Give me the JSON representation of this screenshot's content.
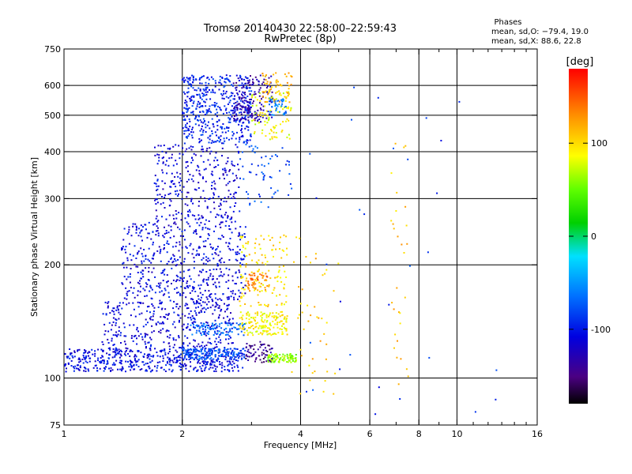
{
  "chart_data": {
    "type": "scatter",
    "title": "Tromsø 20140430 22:58:00–22:59:43",
    "subtitle": "RwPretec (8p)",
    "phase_block": {
      "heading": "Phases",
      "line_o": "mean, sd,O: −79.4, 19.0",
      "line_x": "mean, sd,X: 88.6, 22.8"
    },
    "xlabel": "Frequency [MHz]",
    "ylabel": "Stationary phase Virtual Height [km]",
    "x_scale": "log2",
    "y_scale": "log",
    "xlim": [
      1,
      16
    ],
    "ylim": [
      75,
      750
    ],
    "x_ticks": [
      1,
      2,
      4,
      6,
      8,
      10,
      16
    ],
    "x_tick_labels": [
      "1",
      "2",
      "4",
      "6",
      "8",
      "10",
      "16"
    ],
    "x_minor_ticks": [
      3,
      5,
      7,
      9,
      11,
      12,
      13,
      14,
      15
    ],
    "x_grid": [
      2,
      4,
      6,
      8,
      10
    ],
    "y_ticks": [
      75,
      100,
      200,
      300,
      400,
      500,
      600,
      750
    ],
    "y_tick_labels": [
      "75",
      "100",
      "200",
      "300",
      "400",
      "500",
      "600",
      "750"
    ],
    "y_grid": [
      100,
      200,
      300,
      400,
      500,
      600
    ],
    "grid": true,
    "colorbar": {
      "label": "[deg]",
      "vmin": -180,
      "vmax": 180,
      "ticks": [
        100,
        0,
        -100
      ],
      "tick_labels": [
        "100",
        "0",
        "-100"
      ],
      "colormap": "rainbow"
    },
    "clusters": [
      {
        "fmin": 1.0,
        "fmax": 2.85,
        "hmin": 104,
        "hmax": 120,
        "phase": -105,
        "count": 520
      },
      {
        "fmin": 1.25,
        "fmax": 2.7,
        "hmin": 120,
        "hmax": 160,
        "phase": -110,
        "count": 360
      },
      {
        "fmin": 1.4,
        "fmax": 2.9,
        "hmin": 160,
        "hmax": 260,
        "phase": -108,
        "count": 520
      },
      {
        "fmin": 1.7,
        "fmax": 2.8,
        "hmin": 260,
        "hmax": 420,
        "phase": -112,
        "count": 300
      },
      {
        "fmin": 2.0,
        "fmax": 3.0,
        "hmin": 420,
        "hmax": 640,
        "phase": -95,
        "count": 460
      },
      {
        "fmin": 2.7,
        "fmax": 3.4,
        "hmin": 480,
        "hmax": 640,
        "phase": -130,
        "count": 170
      },
      {
        "fmin": 2.0,
        "fmax": 2.9,
        "hmin": 112,
        "hmax": 120,
        "phase": -75,
        "count": 140
      },
      {
        "fmin": 2.1,
        "fmax": 2.9,
        "hmin": 130,
        "hmax": 140,
        "phase": -70,
        "count": 90
      },
      {
        "fmin": 2.8,
        "fmax": 3.7,
        "hmin": 130,
        "hmax": 150,
        "phase": 90,
        "count": 160
      },
      {
        "fmin": 2.8,
        "fmax": 3.7,
        "hmin": 155,
        "hmax": 240,
        "phase": 100,
        "count": 130
      },
      {
        "fmin": 2.9,
        "fmax": 3.3,
        "hmin": 170,
        "hmax": 190,
        "phase": 135,
        "count": 50
      },
      {
        "fmin": 3.3,
        "fmax": 3.9,
        "hmin": 110,
        "hmax": 116,
        "phase": 60,
        "count": 90
      },
      {
        "fmin": 2.9,
        "fmax": 3.4,
        "hmin": 110,
        "hmax": 125,
        "phase": -145,
        "count": 60
      },
      {
        "fmin": 3.0,
        "fmax": 3.8,
        "hmin": 430,
        "hmax": 580,
        "phase": 85,
        "count": 90
      },
      {
        "fmin": 3.2,
        "fmax": 3.8,
        "hmin": 540,
        "hmax": 650,
        "phase": 115,
        "count": 60
      },
      {
        "fmin": 3.3,
        "fmax": 3.7,
        "hmin": 500,
        "hmax": 560,
        "phase": -60,
        "count": 40
      },
      {
        "fmin": 2.8,
        "fmax": 3.8,
        "hmin": 280,
        "hmax": 420,
        "phase": -80,
        "count": 60
      },
      {
        "fmin": 3.8,
        "fmax": 5.0,
        "hmin": 90,
        "hmax": 240,
        "phase": 110,
        "count": 45
      },
      {
        "fmin": 6.8,
        "fmax": 7.6,
        "hmin": 88,
        "hmax": 440,
        "phase": 110,
        "count": 30
      },
      {
        "fmin": 4.0,
        "fmax": 14.0,
        "hmin": 80,
        "hmax": 600,
        "phase": -90,
        "count": 30
      }
    ]
  }
}
